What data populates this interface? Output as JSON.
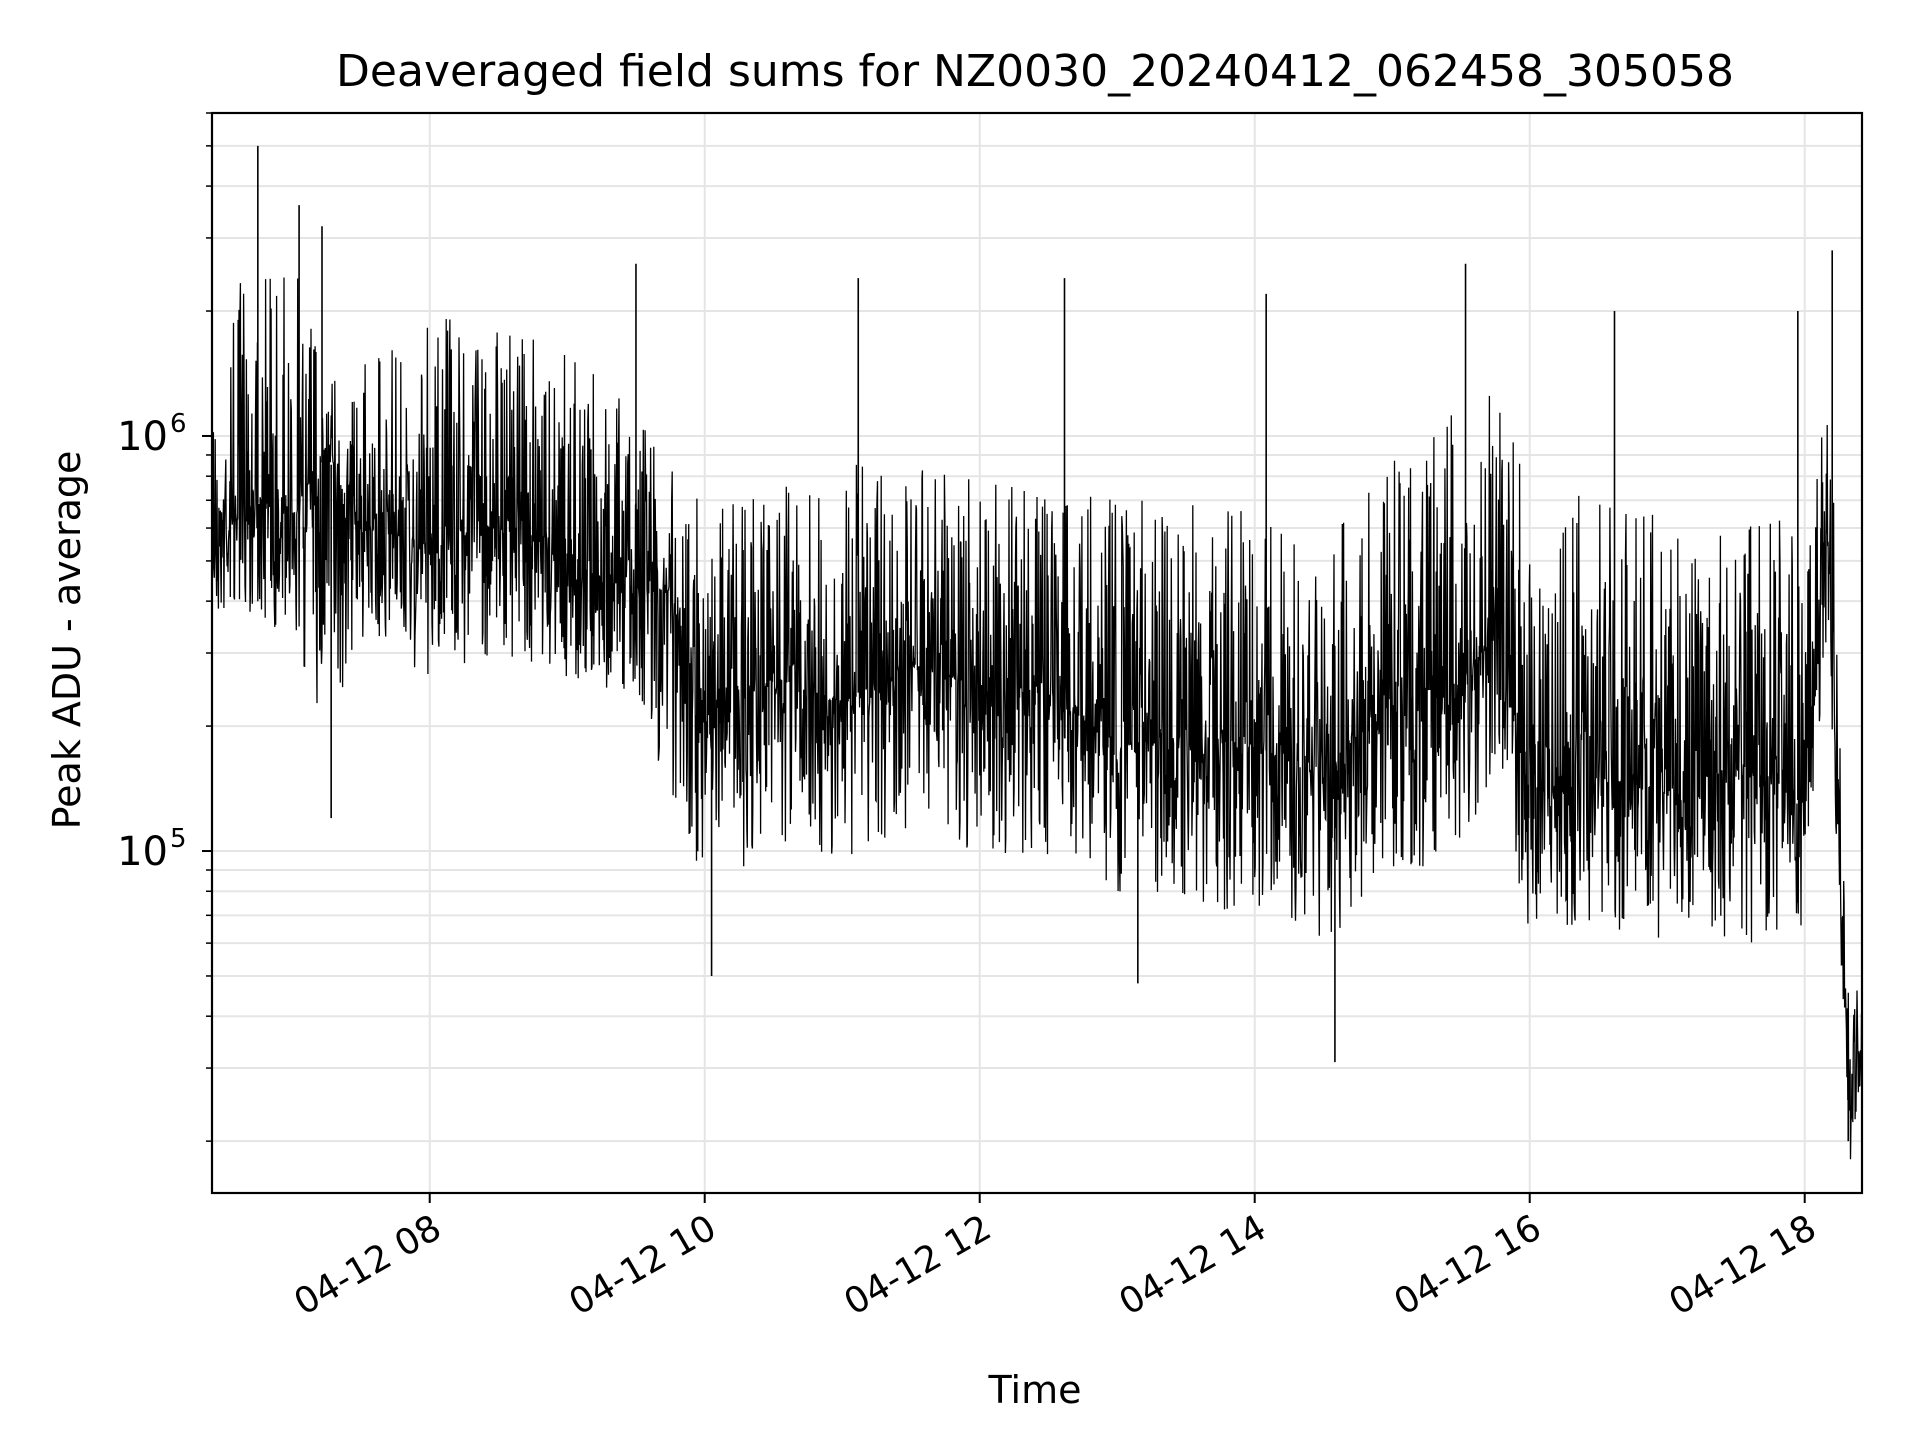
{
  "chart_data": {
    "type": "line",
    "title": "Deaveraged field sums for NZ0030_20240412_062458_305058",
    "xlabel": "Time",
    "ylabel": "Peak ADU - average",
    "x_type": "datetime",
    "xlim": [
      "2024-04-12 06:25",
      "2024-04-12 18:25"
    ],
    "y_scale": "log",
    "ylim": [
      15000,
      6000000
    ],
    "grid": true,
    "legend": "none",
    "line_color": "#000000",
    "grid_color": "#e5e5e5",
    "x_ticks": [
      {
        "value": "2024-04-12 08:00",
        "label": "04-12 08"
      },
      {
        "value": "2024-04-12 10:00",
        "label": "04-12 10"
      },
      {
        "value": "2024-04-12 12:00",
        "label": "04-12 12"
      },
      {
        "value": "2024-04-12 14:00",
        "label": "04-12 14"
      },
      {
        "value": "2024-04-12 16:00",
        "label": "04-12 16"
      },
      {
        "value": "2024-04-12 18:00",
        "label": "04-12 18"
      }
    ],
    "y_ticks": [
      {
        "value": 100000,
        "base": "10",
        "exp": "5"
      },
      {
        "value": 1000000,
        "base": "10",
        "exp": "6"
      }
    ],
    "series": [
      {
        "x": [
          "2024-04-12 06:25",
          "2024-04-12 06:40",
          "2024-04-12 07:00",
          "2024-04-12 07:15",
          "2024-04-12 07:30",
          "2024-04-12 08:00",
          "2024-04-12 08:30",
          "2024-04-12 09:00",
          "2024-04-12 09:30",
          "2024-04-12 09:45",
          "2024-04-12 10:00",
          "2024-04-12 10:30",
          "2024-04-12 11:00",
          "2024-04-12 11:30",
          "2024-04-12 12:00",
          "2024-04-12 12:30",
          "2024-04-12 13:00",
          "2024-04-12 13:30",
          "2024-04-12 14:00",
          "2024-04-12 14:30",
          "2024-04-12 15:00",
          "2024-04-12 15:30",
          "2024-04-12 15:45",
          "2024-04-12 16:00",
          "2024-04-12 16:30",
          "2024-04-12 17:00",
          "2024-04-12 17:30",
          "2024-04-12 18:00",
          "2024-04-12 18:10",
          "2024-04-12 18:15",
          "2024-04-12 18:20",
          "2024-04-12 18:25"
        ],
        "y": [
          550000,
          700000,
          650000,
          900000,
          600000,
          550000,
          650000,
          480000,
          430000,
          420000,
          210000,
          260000,
          230000,
          280000,
          250000,
          240000,
          180000,
          190000,
          180000,
          150000,
          240000,
          260000,
          330000,
          140000,
          150000,
          140000,
          160000,
          130000,
          600000,
          100000,
          22000,
          35000
        ],
        "y_low": [
          350000,
          380000,
          320000,
          180000,
          330000,
          250000,
          300000,
          260000,
          230000,
          130000,
          80000,
          100000,
          95000,
          110000,
          100000,
          95000,
          80000,
          75000,
          70000,
          60000,
          80000,
          100000,
          150000,
          60000,
          65000,
          60000,
          60000,
          60000,
          300000,
          60000,
          18000,
          28000
        ],
        "y_high": [
          1500000,
          2800000,
          3000000,
          1600000,
          1500000,
          2000000,
          1900000,
          1700000,
          1300000,
          1000000,
          650000,
          750000,
          850000,
          900000,
          800000,
          750000,
          700000,
          700000,
          650000,
          550000,
          900000,
          1200000,
          1400000,
          700000,
          750000,
          650000,
          600000,
          650000,
          1200000,
          600000,
          45000,
          50000
        ]
      }
    ],
    "spikes": [
      {
        "x": "2024-04-12 06:45",
        "y": 5000000
      },
      {
        "x": "2024-04-12 07:03",
        "y": 3600000
      },
      {
        "x": "2024-04-12 07:13",
        "y": 3200000
      },
      {
        "x": "2024-04-12 07:17",
        "y": 120000
      },
      {
        "x": "2024-04-12 09:30",
        "y": 2600000
      },
      {
        "x": "2024-04-12 10:03",
        "y": 50000
      },
      {
        "x": "2024-04-12 11:07",
        "y": 2400000
      },
      {
        "x": "2024-04-12 12:37",
        "y": 2400000
      },
      {
        "x": "2024-04-12 13:09",
        "y": 48000
      },
      {
        "x": "2024-04-12 13:05",
        "y": 550000
      },
      {
        "x": "2024-04-12 14:05",
        "y": 2200000
      },
      {
        "x": "2024-04-12 14:35",
        "y": 31000
      },
      {
        "x": "2024-04-12 15:32",
        "y": 2600000
      },
      {
        "x": "2024-04-12 16:37",
        "y": 2000000
      },
      {
        "x": "2024-04-12 17:57",
        "y": 2000000
      },
      {
        "x": "2024-04-12 18:12",
        "y": 2800000
      },
      {
        "x": "2024-04-12 18:19",
        "y": 20000
      }
    ]
  }
}
